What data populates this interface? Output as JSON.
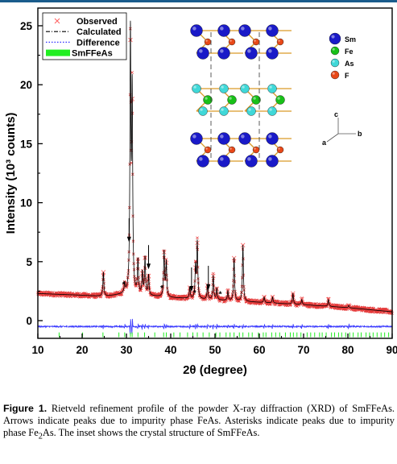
{
  "chart_data": {
    "type": "scatter",
    "xlabel": "2θ (degree)",
    "ylabel": "Intensity (10³ counts)",
    "xlim": [
      10,
      90
    ],
    "ylim": [
      -1.5,
      26.5
    ],
    "xticks": [
      10,
      20,
      30,
      40,
      50,
      60,
      70,
      80,
      90
    ],
    "yticks": [
      0,
      5,
      10,
      15,
      20,
      25
    ],
    "legend_position": "top-left",
    "legend": [
      {
        "name": "Observed",
        "marker": "x",
        "color": "#ff6060"
      },
      {
        "name": "Calculated",
        "style": "dash-dot",
        "color": "#000000"
      },
      {
        "name": "Difference",
        "style": "dotted",
        "color": "#3030ff"
      },
      {
        "name": "SmFFeAs",
        "style": "bar",
        "color": "#22ee22"
      }
    ],
    "background": [
      [
        10,
        2.3
      ],
      [
        20,
        2.15
      ],
      [
        25,
        2.05
      ],
      [
        30,
        2.25
      ],
      [
        35,
        2.1
      ],
      [
        40,
        1.95
      ],
      [
        50,
        1.75
      ],
      [
        60,
        1.55
      ],
      [
        70,
        1.35
      ],
      [
        80,
        1.1
      ],
      [
        90,
        0.75
      ]
    ],
    "peaks": [
      {
        "x": 24.8,
        "y": 4.1
      },
      {
        "x": 29.6,
        "y": 3.0
      },
      {
        "x": 30.9,
        "y": 23.8
      },
      {
        "x": 31.3,
        "y": 18.8
      },
      {
        "x": 32.6,
        "y": 5.0
      },
      {
        "x": 33.6,
        "y": 4.0
      },
      {
        "x": 34.2,
        "y": 5.3
      },
      {
        "x": 35.0,
        "y": 3.8
      },
      {
        "x": 38.5,
        "y": 5.8
      },
      {
        "x": 39.0,
        "y": 4.9
      },
      {
        "x": 44.3,
        "y": 2.8
      },
      {
        "x": 45.6,
        "y": 4.5
      },
      {
        "x": 46.0,
        "y": 6.6
      },
      {
        "x": 48.3,
        "y": 3.0
      },
      {
        "x": 49.6,
        "y": 3.8
      },
      {
        "x": 50.4,
        "y": 2.7
      },
      {
        "x": 52.9,
        "y": 2.5
      },
      {
        "x": 54.3,
        "y": 5.3
      },
      {
        "x": 56.3,
        "y": 6.4
      },
      {
        "x": 61.1,
        "y": 2.0
      },
      {
        "x": 63.0,
        "y": 2.0
      },
      {
        "x": 67.6,
        "y": 2.3
      },
      {
        "x": 69.6,
        "y": 1.8
      },
      {
        "x": 75.6,
        "y": 1.8
      },
      {
        "x": 80.2,
        "y": 1.3
      }
    ],
    "difference_baseline": -0.5,
    "reflection_ticks": [
      14.8,
      20.1,
      24.7,
      28.3,
      29.6,
      30.9,
      31.3,
      32.6,
      34.1,
      36.4,
      38.4,
      39.0,
      40.7,
      42.1,
      43.8,
      45.0,
      46.0,
      47.3,
      48.7,
      50.2,
      51.1,
      52.5,
      53.4,
      54.3,
      55.5,
      56.3,
      57.6,
      58.4,
      59.8,
      60.9,
      61.5,
      62.8,
      63.7,
      64.6,
      65.9,
      67.0,
      67.7,
      68.5,
      69.4,
      70.8,
      71.6,
      72.5,
      73.6,
      74.2,
      75.1,
      76.3,
      77.0,
      77.9,
      78.6,
      79.5,
      80.4,
      81.2,
      82.3,
      83.0,
      84.1,
      84.9,
      85.7,
      86.6,
      87.5,
      88.3,
      89.2
    ],
    "impurity_arrows": [
      30.6,
      35.0,
      44.7,
      48.5
    ],
    "impurity_asterisks": [
      {
        "x": 29.4,
        "y": 3.1
      },
      {
        "x": 38.0,
        "y": 2.8
      },
      {
        "x": 45.4,
        "y": 2.4
      },
      {
        "x": 51.2,
        "y": 2.3
      }
    ],
    "inset": {
      "legend": [
        {
          "element": "Sm",
          "color": "#1a1ac8"
        },
        {
          "element": "Fe",
          "color": "#18c018"
        },
        {
          "element": "As",
          "color": "#40d8d8"
        },
        {
          "element": "F",
          "color": "#e84818"
        }
      ],
      "axes": [
        "c",
        "a",
        "b"
      ]
    }
  },
  "caption": {
    "label": "Figure 1.",
    "text": "Rietveld refinement profile of the powder X-ray diffraction (XRD) of SmFFeAs. Arrows indicate peaks due to impurity phase FeAs. Asterisks indicate peaks due to impurity phase Fe",
    "subscript": "2",
    "text_end": "As. The inset shows the crystal structure of SmFFeAs."
  }
}
